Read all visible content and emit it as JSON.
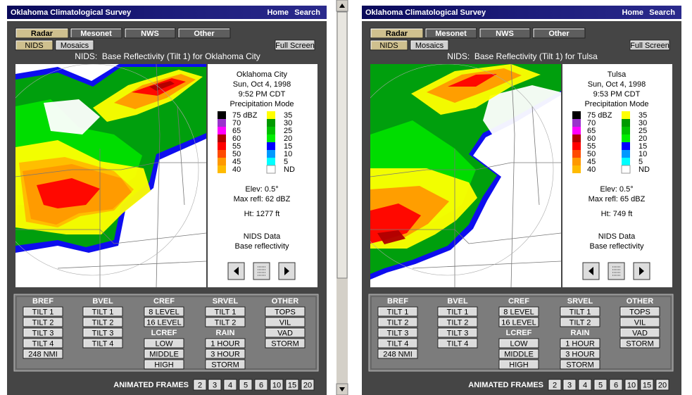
{
  "panels": [
    {
      "header": {
        "title": "Oklahoma Climatological Survey",
        "links": [
          "Home",
          "Search"
        ]
      },
      "tabs": [
        "Radar",
        "Mesonet",
        "NWS",
        "Other"
      ],
      "subtabs": [
        "NIDS",
        "Mosaics"
      ],
      "full_screen": "Full Screen",
      "caption": "NIDS:  Base Reflectivity (Tilt 1) for Oklahoma City",
      "info": {
        "lines": [
          "Oklahoma City",
          "Sun, Oct 4, 1998",
          "9:52 PM CDT",
          "Precipitation Mode"
        ],
        "legend_left": [
          {
            "label": "75 dBZ",
            "color": "#000000"
          },
          {
            "label": "70",
            "color": "#9933cc"
          },
          {
            "label": "65",
            "color": "#ff00ff"
          },
          {
            "label": "60",
            "color": "#b00000"
          },
          {
            "label": "55",
            "color": "#ff0000"
          },
          {
            "label": "50",
            "color": "#ff4a00"
          },
          {
            "label": "45",
            "color": "#ff9900"
          },
          {
            "label": "40",
            "color": "#ffbb00"
          }
        ],
        "legend_right": [
          {
            "label": "35",
            "color": "#ffff00"
          },
          {
            "label": "30",
            "color": "#009900"
          },
          {
            "label": "25",
            "color": "#00c000"
          },
          {
            "label": "20",
            "color": "#00ee00"
          },
          {
            "label": "15",
            "color": "#0000ff"
          },
          {
            "label": "10",
            "color": "#0099ff"
          },
          {
            "label": "5",
            "color": "#00ffff"
          },
          {
            "label": "ND",
            "color": "#ffffff"
          }
        ],
        "details": [
          "Elev: 0.5°",
          "Max refl: 62 dBZ"
        ],
        "height": "Ht: 1277 ft",
        "source": [
          "NIDS Data",
          "Base reflectivity"
        ]
      },
      "products": [
        {
          "name": "BREF",
          "buttons": [
            "TILT 1",
            "TILT 2",
            "TILT 3",
            "TILT 4",
            "248 NMI"
          ]
        },
        {
          "name": "BVEL",
          "buttons": [
            "TILT 1",
            "TILT 2",
            "TILT 3",
            "TILT 4"
          ]
        },
        {
          "name": "CREF",
          "buttons": [
            "8 LEVEL",
            "16 LEVEL"
          ]
        },
        {
          "name": "LCREF",
          "buttons": [
            "LOW",
            "MIDDLE",
            "HIGH"
          ]
        },
        {
          "name": "SRVEL",
          "buttons": [
            "TILT 1",
            "TILT 2"
          ]
        },
        {
          "name": "RAIN",
          "buttons": [
            "1 HOUR",
            "3 HOUR",
            "STORM"
          ]
        },
        {
          "name": "OTHER",
          "buttons": [
            "TOPS",
            "VIL",
            "VAD",
            "STORM"
          ]
        }
      ],
      "frames": {
        "label": "ANIMATED FRAMES",
        "buttons": [
          "2",
          "3",
          "4",
          "5",
          "6",
          "10",
          "15",
          "20"
        ]
      }
    },
    {
      "header": {
        "title": "Oklahoma Climatological Survey",
        "links": [
          "Home",
          "Search"
        ]
      },
      "tabs": [
        "Radar",
        "Mesonet",
        "NWS",
        "Other"
      ],
      "subtabs": [
        "NIDS",
        "Mosaics"
      ],
      "full_screen": "Full Screen",
      "caption": "NIDS:  Base Reflectivity (Tilt 1) for Tulsa",
      "info": {
        "lines": [
          "Tulsa",
          "Sun, Oct 4, 1998",
          "9:53 PM CDT",
          "Precipitation Mode"
        ],
        "legend_left": [
          {
            "label": "75 dBZ",
            "color": "#000000"
          },
          {
            "label": "70",
            "color": "#9933cc"
          },
          {
            "label": "65",
            "color": "#ff00ff"
          },
          {
            "label": "60",
            "color": "#b00000"
          },
          {
            "label": "55",
            "color": "#ff0000"
          },
          {
            "label": "50",
            "color": "#ff4a00"
          },
          {
            "label": "45",
            "color": "#ff9900"
          },
          {
            "label": "40",
            "color": "#ffbb00"
          }
        ],
        "legend_right": [
          {
            "label": "35",
            "color": "#ffff00"
          },
          {
            "label": "30",
            "color": "#009900"
          },
          {
            "label": "25",
            "color": "#00c000"
          },
          {
            "label": "20",
            "color": "#00ee00"
          },
          {
            "label": "15",
            "color": "#0000ff"
          },
          {
            "label": "10",
            "color": "#0099ff"
          },
          {
            "label": "5",
            "color": "#00ffff"
          },
          {
            "label": "ND",
            "color": "#ffffff"
          }
        ],
        "details": [
          "Elev: 0.5°",
          "Max refl: 65 dBZ"
        ],
        "height": "Ht: 749 ft",
        "source": [
          "NIDS Data",
          "Base reflectivity"
        ]
      },
      "products": [
        {
          "name": "BREF",
          "buttons": [
            "TILT 1",
            "TILT 2",
            "TILT 3",
            "TILT 4",
            "248 NMI"
          ]
        },
        {
          "name": "BVEL",
          "buttons": [
            "TILT 1",
            "TILT 2",
            "TILT 3",
            "TILT 4"
          ]
        },
        {
          "name": "CREF",
          "buttons": [
            "8 LEVEL",
            "16 LEVEL"
          ]
        },
        {
          "name": "LCREF",
          "buttons": [
            "LOW",
            "MIDDLE",
            "HIGH"
          ]
        },
        {
          "name": "SRVEL",
          "buttons": [
            "TILT 1",
            "TILT 2"
          ]
        },
        {
          "name": "RAIN",
          "buttons": [
            "1 HOUR",
            "3 HOUR",
            "STORM"
          ]
        },
        {
          "name": "OTHER",
          "buttons": [
            "TOPS",
            "VIL",
            "VAD",
            "STORM"
          ]
        }
      ],
      "frames": {
        "label": "ANIMATED FRAMES",
        "buttons": [
          "2",
          "3",
          "4",
          "5",
          "6",
          "10",
          "15",
          "20"
        ]
      }
    }
  ]
}
